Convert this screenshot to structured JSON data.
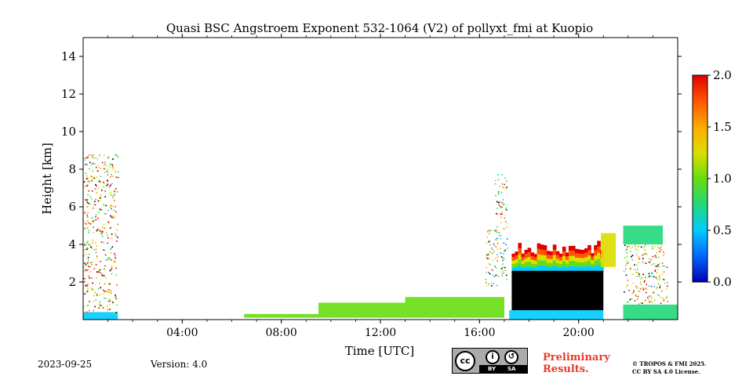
{
  "chart_data": {
    "type": "heatmap",
    "title": "Quasi BSC Angstroem Exponent 532-1064 (V2) of pollyxt_fmi at Kuopio",
    "xlabel": "Time [UTC]",
    "ylabel": "Height [km]",
    "x_unit": "hours UTC",
    "xlim": [
      0,
      24
    ],
    "ylim": [
      0,
      15
    ],
    "x_ticks": [
      {
        "value": 4,
        "label": "04:00"
      },
      {
        "value": 8,
        "label": "08:00"
      },
      {
        "value": 12,
        "label": "12:00"
      },
      {
        "value": 16,
        "label": "16:00"
      },
      {
        "value": 20,
        "label": "20:00"
      }
    ],
    "y_ticks": [
      {
        "value": 2,
        "label": "2"
      },
      {
        "value": 4,
        "label": "4"
      },
      {
        "value": 6,
        "label": "6"
      },
      {
        "value": 8,
        "label": "8"
      },
      {
        "value": 10,
        "label": "10"
      },
      {
        "value": 12,
        "label": "12"
      },
      {
        "value": 14,
        "label": "14"
      }
    ],
    "colorbar": {
      "min": 0.0,
      "max": 2.0,
      "colormap": "jet",
      "colors": [
        "#0000b4",
        "#0066ff",
        "#00ccff",
        "#22d87a",
        "#66dd11",
        "#dddd00",
        "#ffaa00",
        "#ff5500",
        "#e00000"
      ],
      "ticks": [
        {
          "value": 0.0,
          "label": "0.0"
        },
        {
          "value": 0.5,
          "label": "0.5"
        },
        {
          "value": 1.0,
          "label": "1.0"
        },
        {
          "value": 1.5,
          "label": "1.5"
        },
        {
          "value": 2.0,
          "label": "2.0"
        }
      ]
    },
    "layers": [
      {
        "t0": 0.0,
        "t1": 1.4,
        "h0": 0.0,
        "h1": 0.4,
        "value": 0.6,
        "kind": "band"
      },
      {
        "t0": 0.0,
        "t1": 1.4,
        "h0": 0.4,
        "h1": 0.9,
        "value": 1.7,
        "kind": "speckle"
      },
      {
        "t0": 0.0,
        "t1": 1.4,
        "h0": 0.9,
        "h1": 8.8,
        "value": 1.4,
        "kind": "speckle"
      },
      {
        "t0": 6.5,
        "t1": 9.5,
        "h0": 0.1,
        "h1": 0.3,
        "value": 0.9,
        "kind": "band"
      },
      {
        "t0": 9.5,
        "t1": 13.0,
        "h0": 0.1,
        "h1": 0.9,
        "value": 1.0,
        "kind": "band"
      },
      {
        "t0": 13.0,
        "t1": 17.0,
        "h0": 0.1,
        "h1": 1.2,
        "value": 1.1,
        "kind": "band"
      },
      {
        "t0": 17.2,
        "t1": 21.0,
        "h0": 0.0,
        "h1": 0.5,
        "value": 0.6,
        "kind": "band"
      },
      {
        "t0": 17.3,
        "t1": 21.0,
        "h0": 0.5,
        "h1": 2.6,
        "value": null,
        "kind": "cloud"
      },
      {
        "t0": 17.3,
        "t1": 21.0,
        "h0": 2.6,
        "h1": 4.2,
        "value": 1.7,
        "kind": "top"
      },
      {
        "t0": 16.2,
        "t1": 17.1,
        "h0": 1.8,
        "h1": 4.8,
        "value": 1.0,
        "kind": "speckle"
      },
      {
        "t0": 16.6,
        "t1": 17.1,
        "h0": 4.8,
        "h1": 7.8,
        "value": 1.2,
        "kind": "speckle"
      },
      {
        "t0": 20.9,
        "t1": 21.5,
        "h0": 2.8,
        "h1": 4.6,
        "value": 1.3,
        "kind": "band"
      },
      {
        "t0": 21.8,
        "t1": 23.4,
        "h0": 4.0,
        "h1": 5.0,
        "value": 0.8,
        "kind": "band"
      },
      {
        "t0": 21.8,
        "t1": 24.0,
        "h0": 0.0,
        "h1": 0.8,
        "value": 0.7,
        "kind": "band"
      },
      {
        "t0": 21.8,
        "t1": 23.6,
        "h0": 0.8,
        "h1": 4.0,
        "value": 1.3,
        "kind": "speckle"
      }
    ]
  },
  "footer": {
    "date": "2023-09-25",
    "version": "Version: 4.0",
    "preliminary_line1": "Preliminary",
    "preliminary_line2": "Results.",
    "copyright_line1": "© TROPOS & FMI 2025.",
    "copyright_line2": "CC BY SA 4.0 License.",
    "cc_label": "cc",
    "by_label": "BY",
    "sa_label": "SA"
  }
}
